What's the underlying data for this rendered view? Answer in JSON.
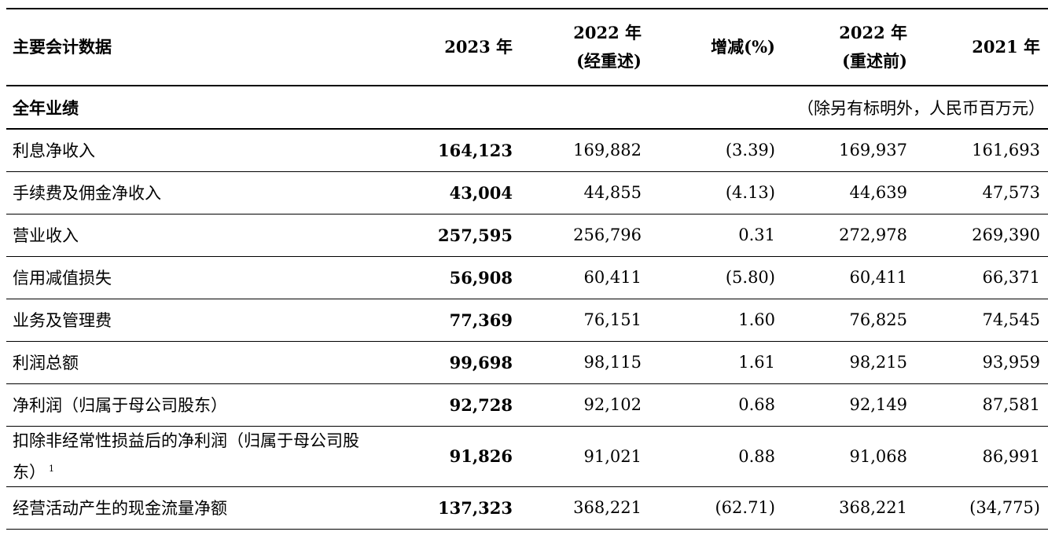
{
  "header": {
    "col_label": "主要会计数据",
    "col_2023": "2023 年",
    "col_2022r_line1": "2022 年",
    "col_2022r_line2": "(经重述)",
    "col_change": "增减(%)",
    "col_2022o_line1": "2022 年",
    "col_2022o_line2": "(重述前)",
    "col_2021": "2021 年"
  },
  "section": {
    "title": "全年业绩",
    "unit_note": "（除另有标明外，人民币百万元）"
  },
  "rows": [
    {
      "label": "利息净收入",
      "y2023": "164,123",
      "y2022r": "169,882",
      "change": "(3.39)",
      "y2022o": "169,937",
      "y2021": "161,693"
    },
    {
      "label": "手续费及佣金净收入",
      "y2023": "43,004",
      "y2022r": "44,855",
      "change": "(4.13)",
      "y2022o": "44,639",
      "y2021": "47,573"
    },
    {
      "label": "营业收入",
      "y2023": "257,595",
      "y2022r": "256,796",
      "change": "0.31",
      "y2022o": "272,978",
      "y2021": "269,390"
    },
    {
      "label": "信用减值损失",
      "y2023": "56,908",
      "y2022r": "60,411",
      "change": "(5.80)",
      "y2022o": "60,411",
      "y2021": "66,371"
    },
    {
      "label": "业务及管理费",
      "y2023": "77,369",
      "y2022r": "76,151",
      "change": "1.60",
      "y2022o": "76,825",
      "y2021": "74,545"
    },
    {
      "label": "利润总额",
      "y2023": "99,698",
      "y2022r": "98,115",
      "change": "1.61",
      "y2022o": "98,215",
      "y2021": "93,959"
    },
    {
      "label": "净利润（归属于母公司股东）",
      "y2023": "92,728",
      "y2022r": "92,102",
      "change": "0.68",
      "y2022o": "92,149",
      "y2021": "87,581"
    },
    {
      "label": "扣除非经常性损益后的净利润（归属于母公司股东）",
      "footnote": "1",
      "y2023": "91,826",
      "y2022r": "91,021",
      "change": "0.88",
      "y2022o": "91,068",
      "y2021": "86,991"
    },
    {
      "label": "经营活动产生的现金流量净额",
      "y2023": "137,323",
      "y2022r": "368,221",
      "change": "(62.71)",
      "y2022o": "368,221",
      "y2021": "(34,775)"
    }
  ]
}
